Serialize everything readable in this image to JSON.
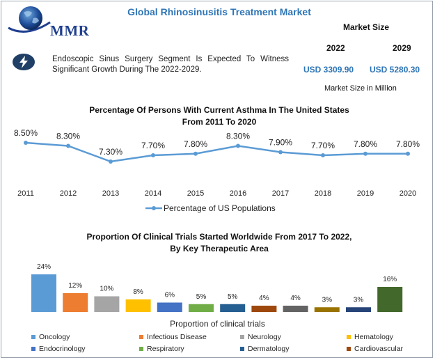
{
  "header": {
    "brand": "MMR",
    "title": "Global Rhinosinusitis Treatment Market",
    "market_size_label": "Market Size",
    "years": [
      "2022",
      "2029"
    ],
    "values": [
      "USD 3309.90",
      "USD 5280.30"
    ],
    "unit_note": "Market Size in Million",
    "description": "Endoscopic Sinus Surgery Segment Is Expected To Witness Significant Growth During The 2022-2029.",
    "icon": "lightning-bolt-icon",
    "accent": "#2e75b6"
  },
  "chart_data": [
    {
      "type": "line",
      "title_line1": "Percentage Of Persons With Current Asthma In The United States",
      "title_line2": "From 2011 To 2020",
      "categories": [
        "2011",
        "2012",
        "2013",
        "2014",
        "2015",
        "2016",
        "2017",
        "2018",
        "2019",
        "2020"
      ],
      "series": [
        {
          "name": "Percentage of US Populations",
          "values": [
            8.5,
            8.3,
            7.3,
            7.7,
            7.8,
            8.3,
            7.9,
            7.7,
            7.8,
            7.8
          ],
          "labels": [
            "8.50%",
            "8.30%",
            "7.30%",
            "7.70%",
            "7.80%",
            "8.30%",
            "7.90%",
            "7.70%",
            "7.80%",
            "7.80%"
          ],
          "color": "#5b9bd5"
        }
      ]
    },
    {
      "type": "bar",
      "title_line1": "Proportion Of Clinical Trials Started Worldwide From 2017 To 2022,",
      "title_line2": "By Key Therapeutic Area",
      "xlabel": "Proportion of clinical trials",
      "categories": [
        "Oncology",
        "Infectious Disease",
        "Neurology",
        "Hematology",
        "Endocrinology",
        "Respiratory",
        "Dermatology",
        "Cardiovascular",
        "",
        "",
        "",
        ""
      ],
      "values": [
        24,
        12,
        10,
        8,
        6,
        5,
        5,
        4,
        4,
        3,
        3,
        16
      ],
      "labels": [
        "24%",
        "12%",
        "10%",
        "8%",
        "6%",
        "5%",
        "5%",
        "4%",
        "4%",
        "3%",
        "3%",
        "16%"
      ],
      "colors": [
        "#5b9bd5",
        "#ed7d31",
        "#a5a5a5",
        "#ffc000",
        "#4472c4",
        "#70ad47",
        "#255e91",
        "#9e480e",
        "#636363",
        "#997300",
        "#264478",
        "#43682b"
      ],
      "legend": [
        {
          "label": "Oncology",
          "color": "#5b9bd5"
        },
        {
          "label": "Infectious Disease",
          "color": "#ed7d31"
        },
        {
          "label": "Neurology",
          "color": "#a5a5a5"
        },
        {
          "label": "Hematology",
          "color": "#ffc000"
        },
        {
          "label": "Endocrinology",
          "color": "#4472c4"
        },
        {
          "label": "Respiratory",
          "color": "#70ad47"
        },
        {
          "label": "Dermatology",
          "color": "#255e91"
        },
        {
          "label": "Cardiovascular",
          "color": "#9e480e"
        }
      ]
    }
  ]
}
